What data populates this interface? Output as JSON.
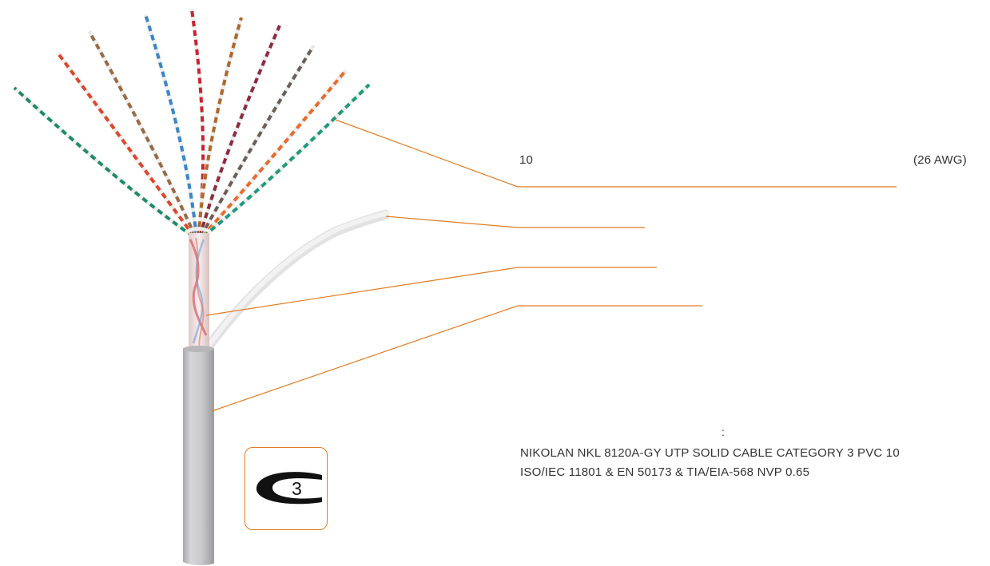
{
  "callouts": {
    "pairs_count": "10",
    "wire_gauge": "(26 AWG)"
  },
  "marking": {
    "colon": ":",
    "line_1": "NIKOLAN NKL 8120A-GY UTP SOLID CABLE CATEGORY 3 PVC 10",
    "line_2": "ISO/IEC 11801 & EN 50173 & TIA/EIA-568 NVP 0.65"
  },
  "category_badge": {
    "number": "3",
    "icon": "category-3-logo"
  },
  "colors": {
    "callout_line": "#e07b21",
    "jacket": "#c8c8ca",
    "text": "#333333"
  },
  "cable": {
    "pair_colors": [
      "#1f8a6a",
      "#e0452a",
      "#9a6a44",
      "#3a86c8",
      "#c8242e",
      "#b0672a",
      "#8e2a3e",
      "#6b5e58",
      "#ea6a2a",
      "#1f9a7a"
    ],
    "icon": "twisted-pair-cable-illustration"
  }
}
